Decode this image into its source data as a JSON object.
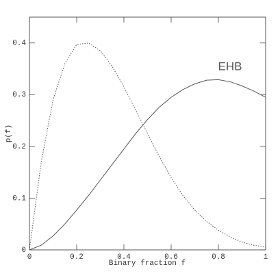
{
  "chart_data": {
    "type": "line",
    "x_label": "Binary fraction f",
    "y_label": "p(f)",
    "annotation": "EHB",
    "x": [
      0,
      0.05,
      0.1,
      0.15,
      0.2,
      0.25,
      0.3,
      0.35,
      0.4,
      0.45,
      0.5,
      0.55,
      0.6,
      0.65,
      0.7,
      0.75,
      0.8,
      0.85,
      0.9,
      0.95,
      1
    ],
    "series": [
      {
        "color": "#555555",
        "style": "solid",
        "values": [
          0,
          0.009,
          0.027,
          0.05,
          0.077,
          0.105,
          0.135,
          0.165,
          0.195,
          0.225,
          0.252,
          0.276,
          0.295,
          0.31,
          0.321,
          0.328,
          0.329,
          0.325,
          0.317,
          0.307,
          0.295
        ]
      },
      {
        "color": "#555555",
        "style": "dotted",
        "values": [
          0,
          0.17,
          0.29,
          0.36,
          0.397,
          0.4,
          0.385,
          0.355,
          0.315,
          0.27,
          0.225,
          0.18,
          0.14,
          0.105,
          0.077,
          0.055,
          0.038,
          0.025,
          0.015,
          0.009,
          0.005
        ]
      }
    ],
    "xlim": [
      0,
      1
    ],
    "ylim": [
      0,
      0.45
    ],
    "xticks": [
      0,
      0.2,
      0.4,
      0.6,
      0.8,
      1
    ],
    "yticks": [
      0,
      0.1,
      0.2,
      0.3,
      0.4
    ]
  }
}
